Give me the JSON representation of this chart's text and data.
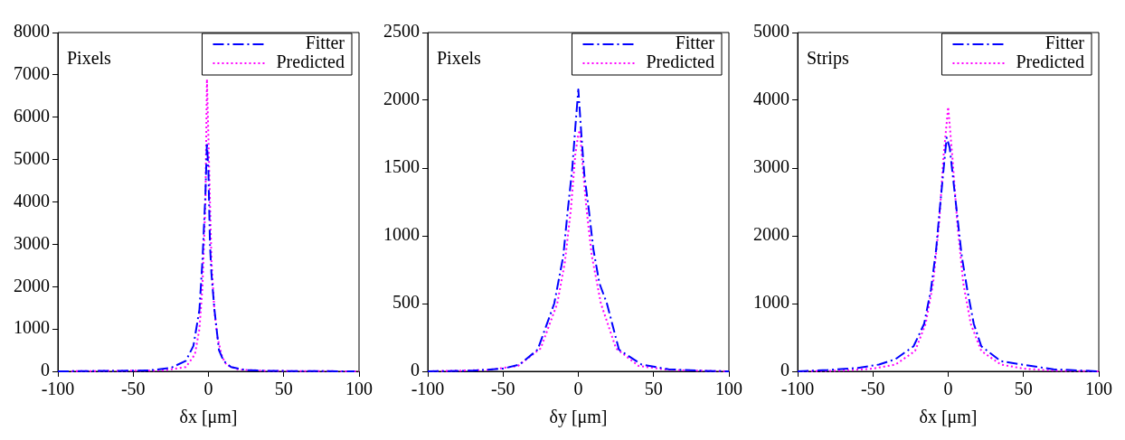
{
  "chart_data": [
    {
      "type": "line",
      "xlabel": "δx [μm]",
      "annotations": [
        "Pixels"
      ],
      "xlim": [
        -100,
        100
      ],
      "xticks": [
        -100,
        -50,
        0,
        50,
        100
      ],
      "ylim": [
        0,
        8000
      ],
      "yticks": [
        0,
        1000,
        2000,
        3000,
        4000,
        5000,
        6000,
        7000,
        8000
      ],
      "grid": false,
      "legend": "top right",
      "marker": "none",
      "series": [
        {
          "name": "Fitter",
          "color": "#0000ff",
          "line_style": "dashed",
          "x": [
            -100,
            -40,
            -25,
            -15,
            -10,
            -6,
            -4,
            -2,
            -1,
            0,
            1,
            2,
            4,
            7,
            10,
            15,
            25,
            40,
            97
          ],
          "values": [
            0,
            20,
            80,
            250,
            600,
            1450,
            2600,
            4200,
            5400,
            4700,
            3000,
            2300,
            1450,
            500,
            250,
            100,
            30,
            10,
            0
          ]
        },
        {
          "name": "Predicted",
          "color": "#ff00ff",
          "line_style": "dotted",
          "x": [
            -100,
            -30,
            -15,
            -9,
            -6,
            -4,
            -2,
            -1,
            0,
            1,
            2,
            4,
            6,
            9,
            12,
            20,
            40,
            100
          ],
          "values": [
            0,
            20,
            100,
            400,
            1000,
            2000,
            4000,
            6900,
            5500,
            4000,
            2600,
            1400,
            800,
            350,
            150,
            40,
            10,
            0
          ]
        }
      ]
    },
    {
      "type": "line",
      "xlabel": "δy [μm]",
      "annotations": [
        "Pixels"
      ],
      "xlim": [
        -100,
        100
      ],
      "xticks": [
        -100,
        -50,
        0,
        50,
        100
      ],
      "ylim": [
        0,
        2500
      ],
      "yticks": [
        0,
        500,
        1000,
        1500,
        2000,
        2500
      ],
      "grid": false,
      "legend": "top right",
      "marker": "none",
      "series": [
        {
          "name": "Fitter",
          "color": "#0000ff",
          "line_style": "dashed",
          "x": [
            -100,
            -70,
            -50,
            -39,
            -27,
            -16,
            -10,
            -7,
            -4,
            -2,
            0,
            2,
            4,
            7,
            10,
            14,
            19,
            27,
            42,
            60,
            80,
            100
          ],
          "values": [
            0,
            5,
            20,
            50,
            160,
            500,
            850,
            1190,
            1500,
            1800,
            2080,
            1750,
            1450,
            1190,
            900,
            650,
            500,
            160,
            50,
            15,
            5,
            0
          ]
        },
        {
          "name": "Predicted",
          "color": "#ff00ff",
          "line_style": "dotted",
          "x": [
            -100,
            -60,
            -40,
            -25,
            -14,
            -9,
            -5,
            -2,
            0,
            1,
            3,
            5.5,
            9,
            15,
            25,
            40,
            60,
            100
          ],
          "values": [
            0,
            10,
            40,
            170,
            500,
            800,
            1190,
            1600,
            1750,
            1780,
            1500,
            1190,
            850,
            500,
            170,
            40,
            10,
            0
          ]
        }
      ]
    },
    {
      "type": "line",
      "xlabel": "δx [μm]",
      "annotations": [
        "Strips"
      ],
      "xlim": [
        -100,
        100
      ],
      "xticks": [
        -100,
        -50,
        0,
        50,
        100
      ],
      "ylim": [
        0,
        5000
      ],
      "yticks": [
        0,
        1000,
        2000,
        3000,
        4000,
        5000
      ],
      "grid": false,
      "legend": "top right",
      "marker": "none",
      "series": [
        {
          "name": "Fitter",
          "color": "#0000ff",
          "line_style": "dashed",
          "x": [
            -100,
            -80,
            -60,
            -46,
            -35,
            -23,
            -16,
            -11.5,
            -8,
            -6,
            -3,
            -1,
            1,
            3,
            6,
            9,
            12.7,
            17,
            22,
            35,
            49,
            70,
            100
          ],
          "values": [
            0,
            20,
            50,
            100,
            180,
            370,
            700,
            1200,
            1800,
            2300,
            3000,
            3450,
            3300,
            2900,
            2300,
            1700,
            1200,
            700,
            370,
            150,
            100,
            30,
            0
          ]
        },
        {
          "name": "Predicted",
          "color": "#ff00ff",
          "line_style": "dotted",
          "x": [
            -100,
            -70,
            -50,
            -35,
            -22,
            -15,
            -10,
            -6,
            -3,
            0,
            3,
            6,
            10,
            15,
            22,
            35,
            50,
            70,
            100
          ],
          "values": [
            0,
            10,
            40,
            100,
            300,
            700,
            1300,
            2200,
            3200,
            3900,
            3100,
            2200,
            1300,
            700,
            300,
            100,
            40,
            10,
            0
          ]
        }
      ]
    }
  ]
}
